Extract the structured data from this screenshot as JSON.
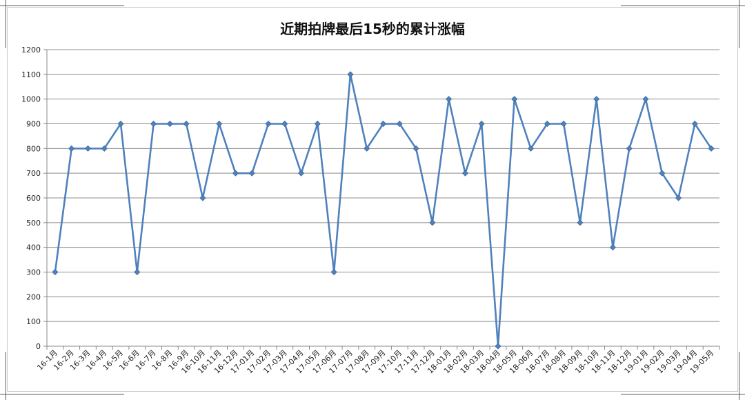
{
  "chart_data": {
    "type": "line",
    "title": "近期拍牌最后15秒的累计涨幅",
    "xlabel": "",
    "ylabel": "",
    "ylim": [
      0,
      1200
    ],
    "yticks": [
      0,
      100,
      200,
      300,
      400,
      500,
      600,
      700,
      800,
      900,
      1000,
      1100,
      1200
    ],
    "grid": true,
    "legend": "none",
    "line_color": "#4f81bd",
    "categories": [
      "16-1月",
      "16-2月",
      "16-3月",
      "16-4月",
      "16-5月",
      "16-6月",
      "16-7月",
      "16-8月",
      "16-9月",
      "16-10月",
      "16-11月",
      "16-12月",
      "17-01月",
      "17-02月",
      "17-03月",
      "17-04月",
      "17-05月",
      "17-06月",
      "17-07月",
      "17-08月",
      "17-09月",
      "17-10月",
      "17-11月",
      "17-12月",
      "18-01月",
      "18-02月",
      "18-03月",
      "18-04月",
      "18-05月",
      "18-06月",
      "18-07月",
      "18-08月",
      "18-09月",
      "18-10月",
      "18-11月",
      "18-12月",
      "19-01月",
      "19-02月",
      "19-03月",
      "19-04月",
      "19-05月"
    ],
    "series": [
      {
        "values": [
          300,
          800,
          800,
          800,
          900,
          300,
          900,
          900,
          900,
          600,
          900,
          700,
          700,
          900,
          900,
          700,
          900,
          300,
          1100,
          800,
          900,
          900,
          800,
          500,
          1000,
          700,
          900,
          0,
          1000,
          800,
          900,
          900,
          500,
          1000,
          400,
          800,
          1000,
          700,
          600,
          900,
          800
        ]
      }
    ]
  }
}
